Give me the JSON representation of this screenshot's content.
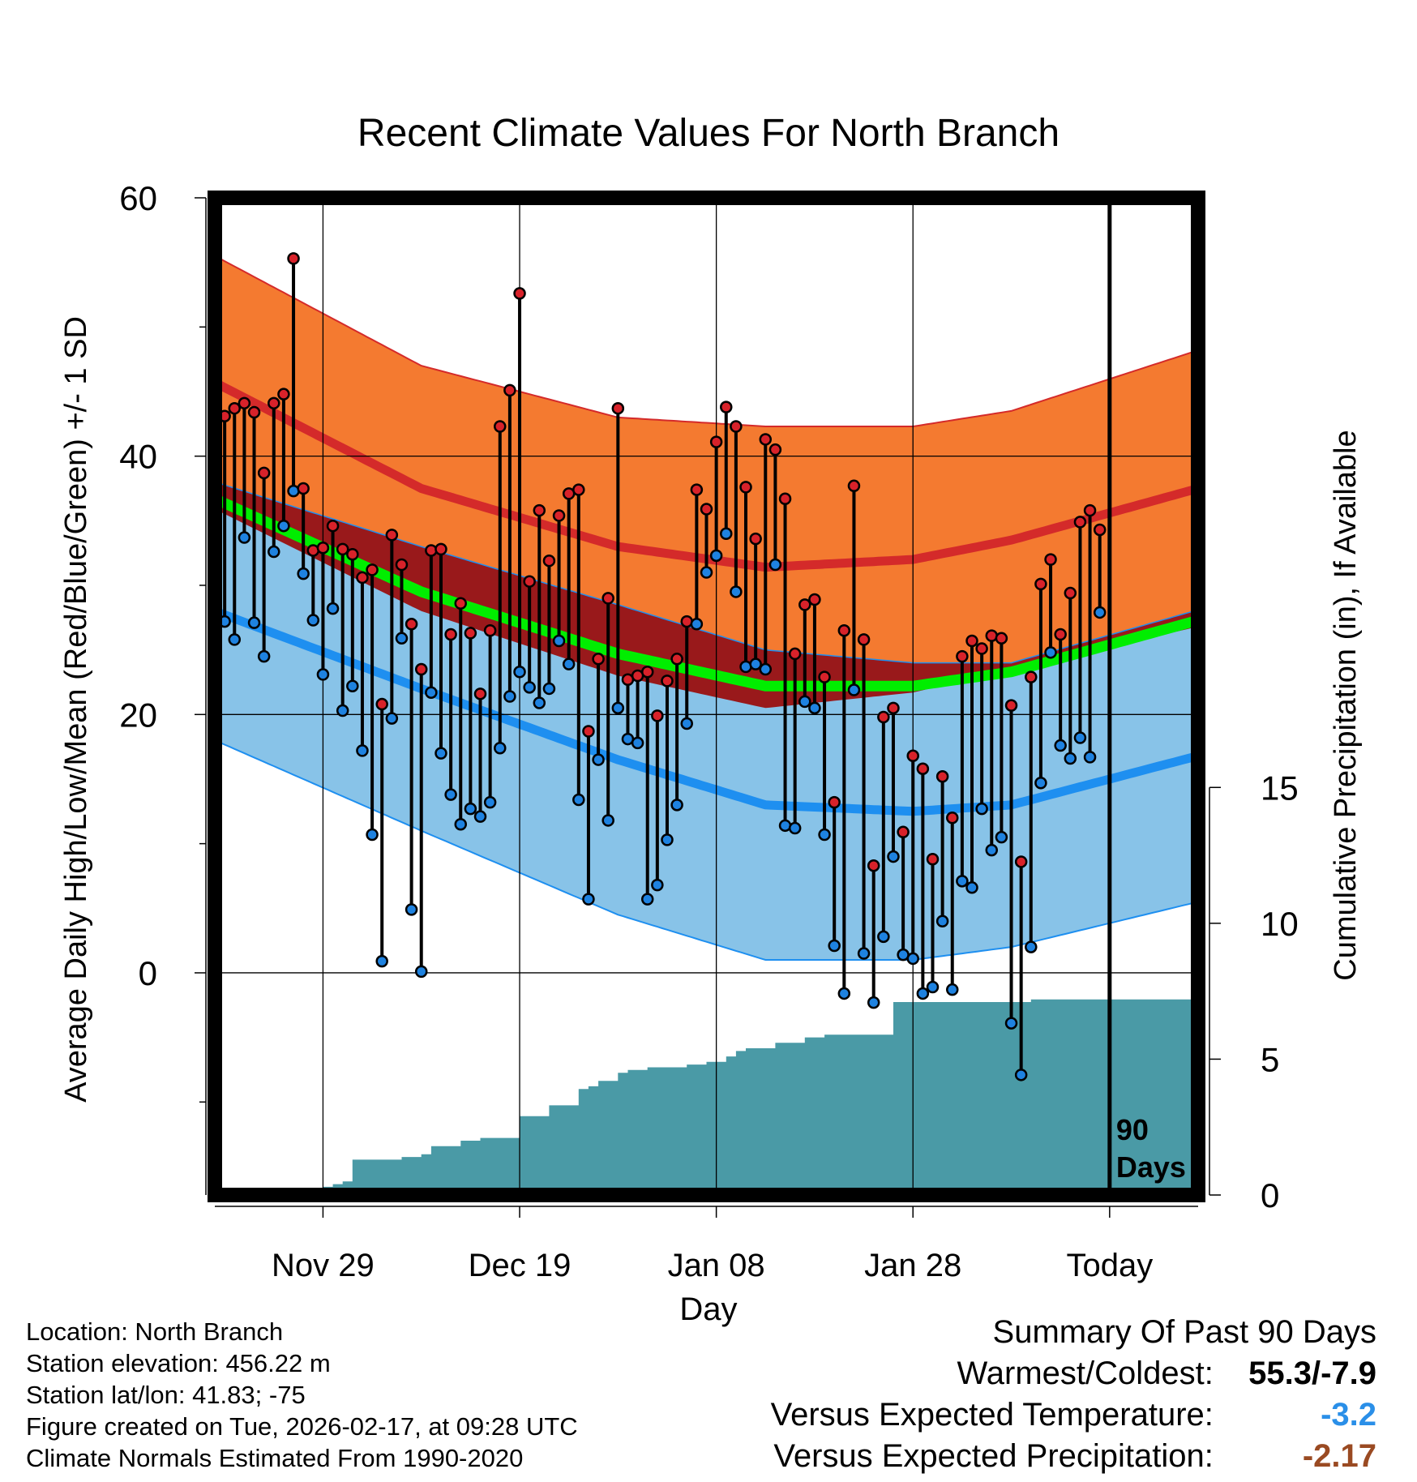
{
  "chart_data": {
    "type": "climate-range",
    "title": "Recent Climate Values For North Branch",
    "xlabel": "Day",
    "ylabel": "Average Daily High/Low/Mean (Red/Blue/Green) +/- 1 SD",
    "y2label": "Cumulative Precipitation (in), If Available",
    "ylim": [
      -17.2,
      60
    ],
    "y_ticks": [
      0,
      20,
      40,
      60
    ],
    "y2lim": [
      0,
      36.7
    ],
    "y2_ticks": [
      0,
      5,
      10,
      15
    ],
    "x_ticks": [
      {
        "day": 10,
        "label": "Nov 29"
      },
      {
        "day": 30,
        "label": "Dec 19"
      },
      {
        "day": 50,
        "label": "Jan 08"
      },
      {
        "day": 70,
        "label": "Jan 28"
      },
      {
        "day": 90,
        "label": "Today"
      }
    ],
    "xlim": [
      -1,
      99
    ],
    "today_marker_label": "90 Days",
    "normal_high": {
      "days": [
        -1,
        20,
        40,
        55,
        70,
        80,
        99
      ],
      "values": [
        45.7,
        37.5,
        33.0,
        31.4,
        32.0,
        33.5,
        37.5
      ]
    },
    "normal_high_upper": {
      "days": [
        -1,
        20,
        40,
        55,
        70,
        80,
        99
      ],
      "values": [
        55.5,
        47.0,
        43.0,
        42.3,
        42.3,
        43.5,
        48.2
      ]
    },
    "normal_low": {
      "days": [
        -1,
        20,
        40,
        55,
        70,
        80,
        99
      ],
      "values": [
        28.0,
        22.0,
        16.5,
        13.0,
        12.5,
        13.0,
        16.8
      ]
    },
    "normal_low_lower": {
      "days": [
        -1,
        20,
        40,
        55,
        70,
        80,
        99
      ],
      "values": [
        18.0,
        11.0,
        4.5,
        1.0,
        1.0,
        2.0,
        5.5
      ]
    },
    "normal_mean": {
      "days": [
        -1,
        20,
        40,
        55,
        70,
        80,
        99
      ],
      "values": [
        36.7,
        29.5,
        24.7,
        22.2,
        22.2,
        23.3,
        27.3
      ]
    },
    "highs": [
      43.1,
      43.7,
      44.1,
      43.4,
      38.7,
      44.1,
      44.8,
      55.3,
      37.5,
      32.7,
      32.9,
      34.6,
      32.8,
      32.4,
      30.6,
      31.2,
      20.8,
      33.9,
      31.6,
      27.0,
      23.5,
      32.7,
      32.8,
      26.2,
      28.6,
      26.3,
      21.6,
      26.5,
      42.3,
      45.1,
      52.6,
      30.3,
      35.8,
      31.9,
      35.4,
      37.1,
      37.4,
      18.7,
      24.3,
      29.0,
      43.7,
      22.7,
      23.0,
      23.3,
      19.9,
      22.6,
      24.3,
      27.2,
      37.4,
      35.9,
      41.1,
      43.8,
      42.3,
      37.6,
      33.6,
      41.3,
      40.5,
      36.7,
      24.7,
      28.5,
      28.9,
      22.9,
      13.2,
      26.5,
      37.7,
      25.8,
      8.3,
      19.8,
      20.5,
      10.9,
      16.8,
      15.8,
      8.8,
      15.2,
      12.0,
      24.5,
      25.7,
      25.1,
      26.1,
      25.9,
      20.7,
      8.6,
      22.9,
      30.1,
      32.0,
      26.2,
      29.4,
      34.9,
      35.8,
      34.3
    ],
    "lows": [
      27.2,
      25.8,
      33.7,
      27.1,
      24.5,
      32.6,
      34.6,
      37.3,
      30.9,
      27.3,
      23.1,
      28.2,
      20.3,
      22.2,
      17.2,
      10.7,
      0.9,
      19.7,
      25.9,
      4.9,
      0.1,
      21.7,
      17.0,
      13.8,
      11.5,
      12.7,
      12.1,
      13.2,
      17.4,
      21.4,
      23.3,
      22.1,
      20.9,
      22.0,
      25.7,
      23.9,
      13.4,
      5.7,
      16.5,
      11.8,
      20.5,
      18.1,
      17.8,
      5.7,
      6.8,
      10.3,
      13.0,
      19.3,
      27.0,
      31.0,
      32.3,
      34.0,
      29.5,
      23.7,
      23.9,
      23.5,
      31.6,
      11.4,
      11.2,
      21.0,
      20.5,
      10.7,
      2.1,
      -1.6,
      21.9,
      1.5,
      -2.3,
      2.8,
      9.0,
      1.4,
      1.1,
      -1.6,
      -1.1,
      4.0,
      -1.3,
      7.1,
      6.6,
      12.7,
      9.5,
      10.5,
      -3.9,
      -7.9,
      2.0,
      14.7,
      24.8,
      17.6,
      16.6,
      18.2,
      16.7,
      27.9
    ],
    "precip": {
      "days": [
        -1,
        4,
        6,
        7,
        8,
        10,
        11,
        12,
        13,
        16,
        18,
        20,
        21,
        22,
        24,
        25,
        26,
        27,
        29,
        30,
        31,
        32,
        33,
        35,
        36,
        37,
        38,
        40,
        41,
        43,
        45,
        47,
        49,
        51,
        52,
        53,
        55,
        56,
        58,
        59,
        61,
        63,
        65,
        67,
        68,
        70,
        73,
        76,
        79,
        82,
        85,
        88,
        90,
        99
      ],
      "values": [
        0.0,
        0.0,
        0.05,
        0.1,
        0.2,
        0.3,
        0.4,
        0.5,
        1.3,
        1.3,
        1.4,
        1.5,
        1.8,
        1.8,
        2.0,
        2.0,
        2.1,
        2.1,
        2.1,
        2.9,
        2.9,
        2.9,
        3.3,
        3.3,
        3.9,
        4.0,
        4.2,
        4.5,
        4.6,
        4.7,
        4.7,
        4.8,
        4.9,
        5.1,
        5.3,
        5.4,
        5.4,
        5.6,
        5.6,
        5.8,
        5.9,
        5.9,
        5.9,
        5.9,
        7.1,
        7.1,
        7.1,
        7.1,
        7.1,
        7.2,
        7.2,
        7.2,
        7.2,
        7.2
      ]
    },
    "colors": {
      "high_band": "#f47a30",
      "high_line": "#d42a2a",
      "low_band": "#88c3e8",
      "low_line": "#1e8ff0",
      "mean_line": "#00ee00",
      "overlap": "#9a1010",
      "precip": "#4a9aa6",
      "high_dot": "#d8222a",
      "low_dot": "#1e82e0"
    }
  },
  "info": {
    "location": "Location: North Branch",
    "elevation": "Station elevation: 456.22 m",
    "latlon": "Station lat/lon: 41.83; -75",
    "created": "Figure created on Tue, 2026-02-17, at 09:28 UTC",
    "normals": "Climate Normals Estimated From 1990-2020"
  },
  "summary": {
    "title": "Summary Of Past 90 Days",
    "warmest_label": "Warmest/Coldest:",
    "warmest_value": "55.3/-7.9",
    "temp_label": "Versus Expected Temperature:",
    "temp_value": "-3.2",
    "temp_color": "#2a8fe8",
    "precip_label": "Versus Expected Precipitation:",
    "precip_value": "-2.17",
    "precip_color": "#9a4a22"
  }
}
